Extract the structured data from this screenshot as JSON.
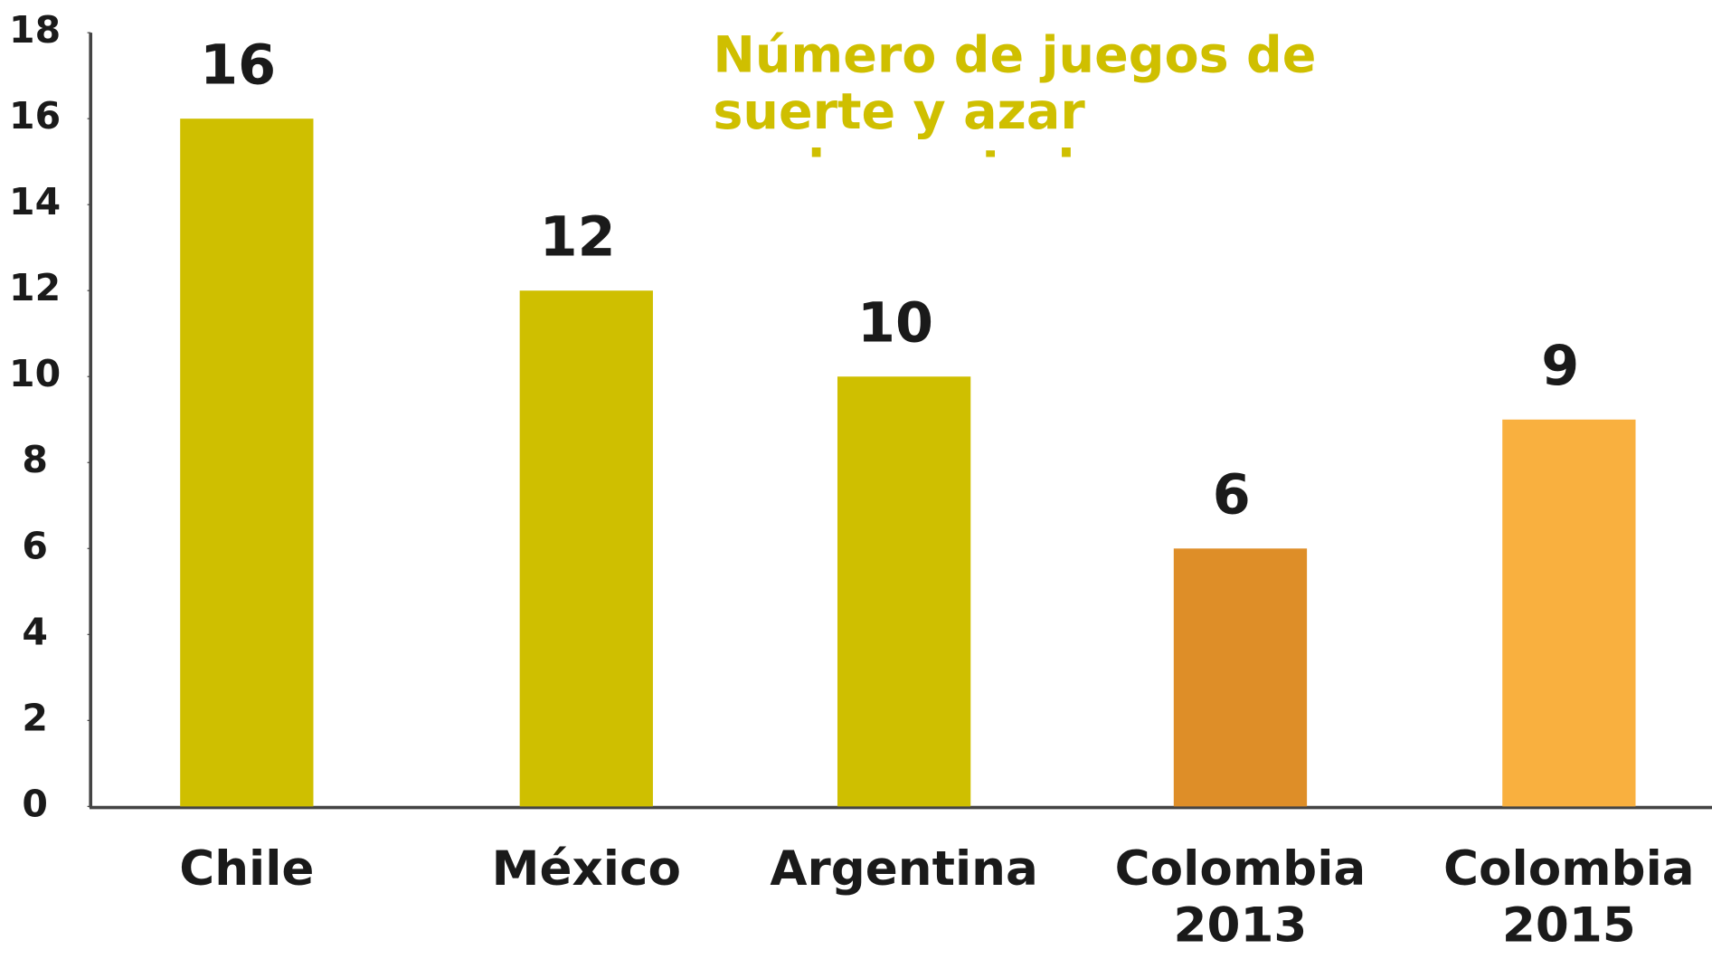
{
  "chart_data": {
    "type": "bar",
    "title": "Número de juegos de suerte y azar reglamentados",
    "categories": [
      "Chile",
      "México",
      "Argentina",
      "Colombia 2013",
      "Colombia 2015"
    ],
    "values": [
      16,
      12,
      10,
      6,
      9
    ],
    "colors": [
      "#cfbf00",
      "#cfbf00",
      "#cfbf00",
      "#de8e28",
      "#f9b03f"
    ],
    "ylim": [
      0,
      18
    ],
    "yticks": [
      0,
      2,
      4,
      6,
      8,
      10,
      12,
      14,
      16,
      18
    ]
  }
}
